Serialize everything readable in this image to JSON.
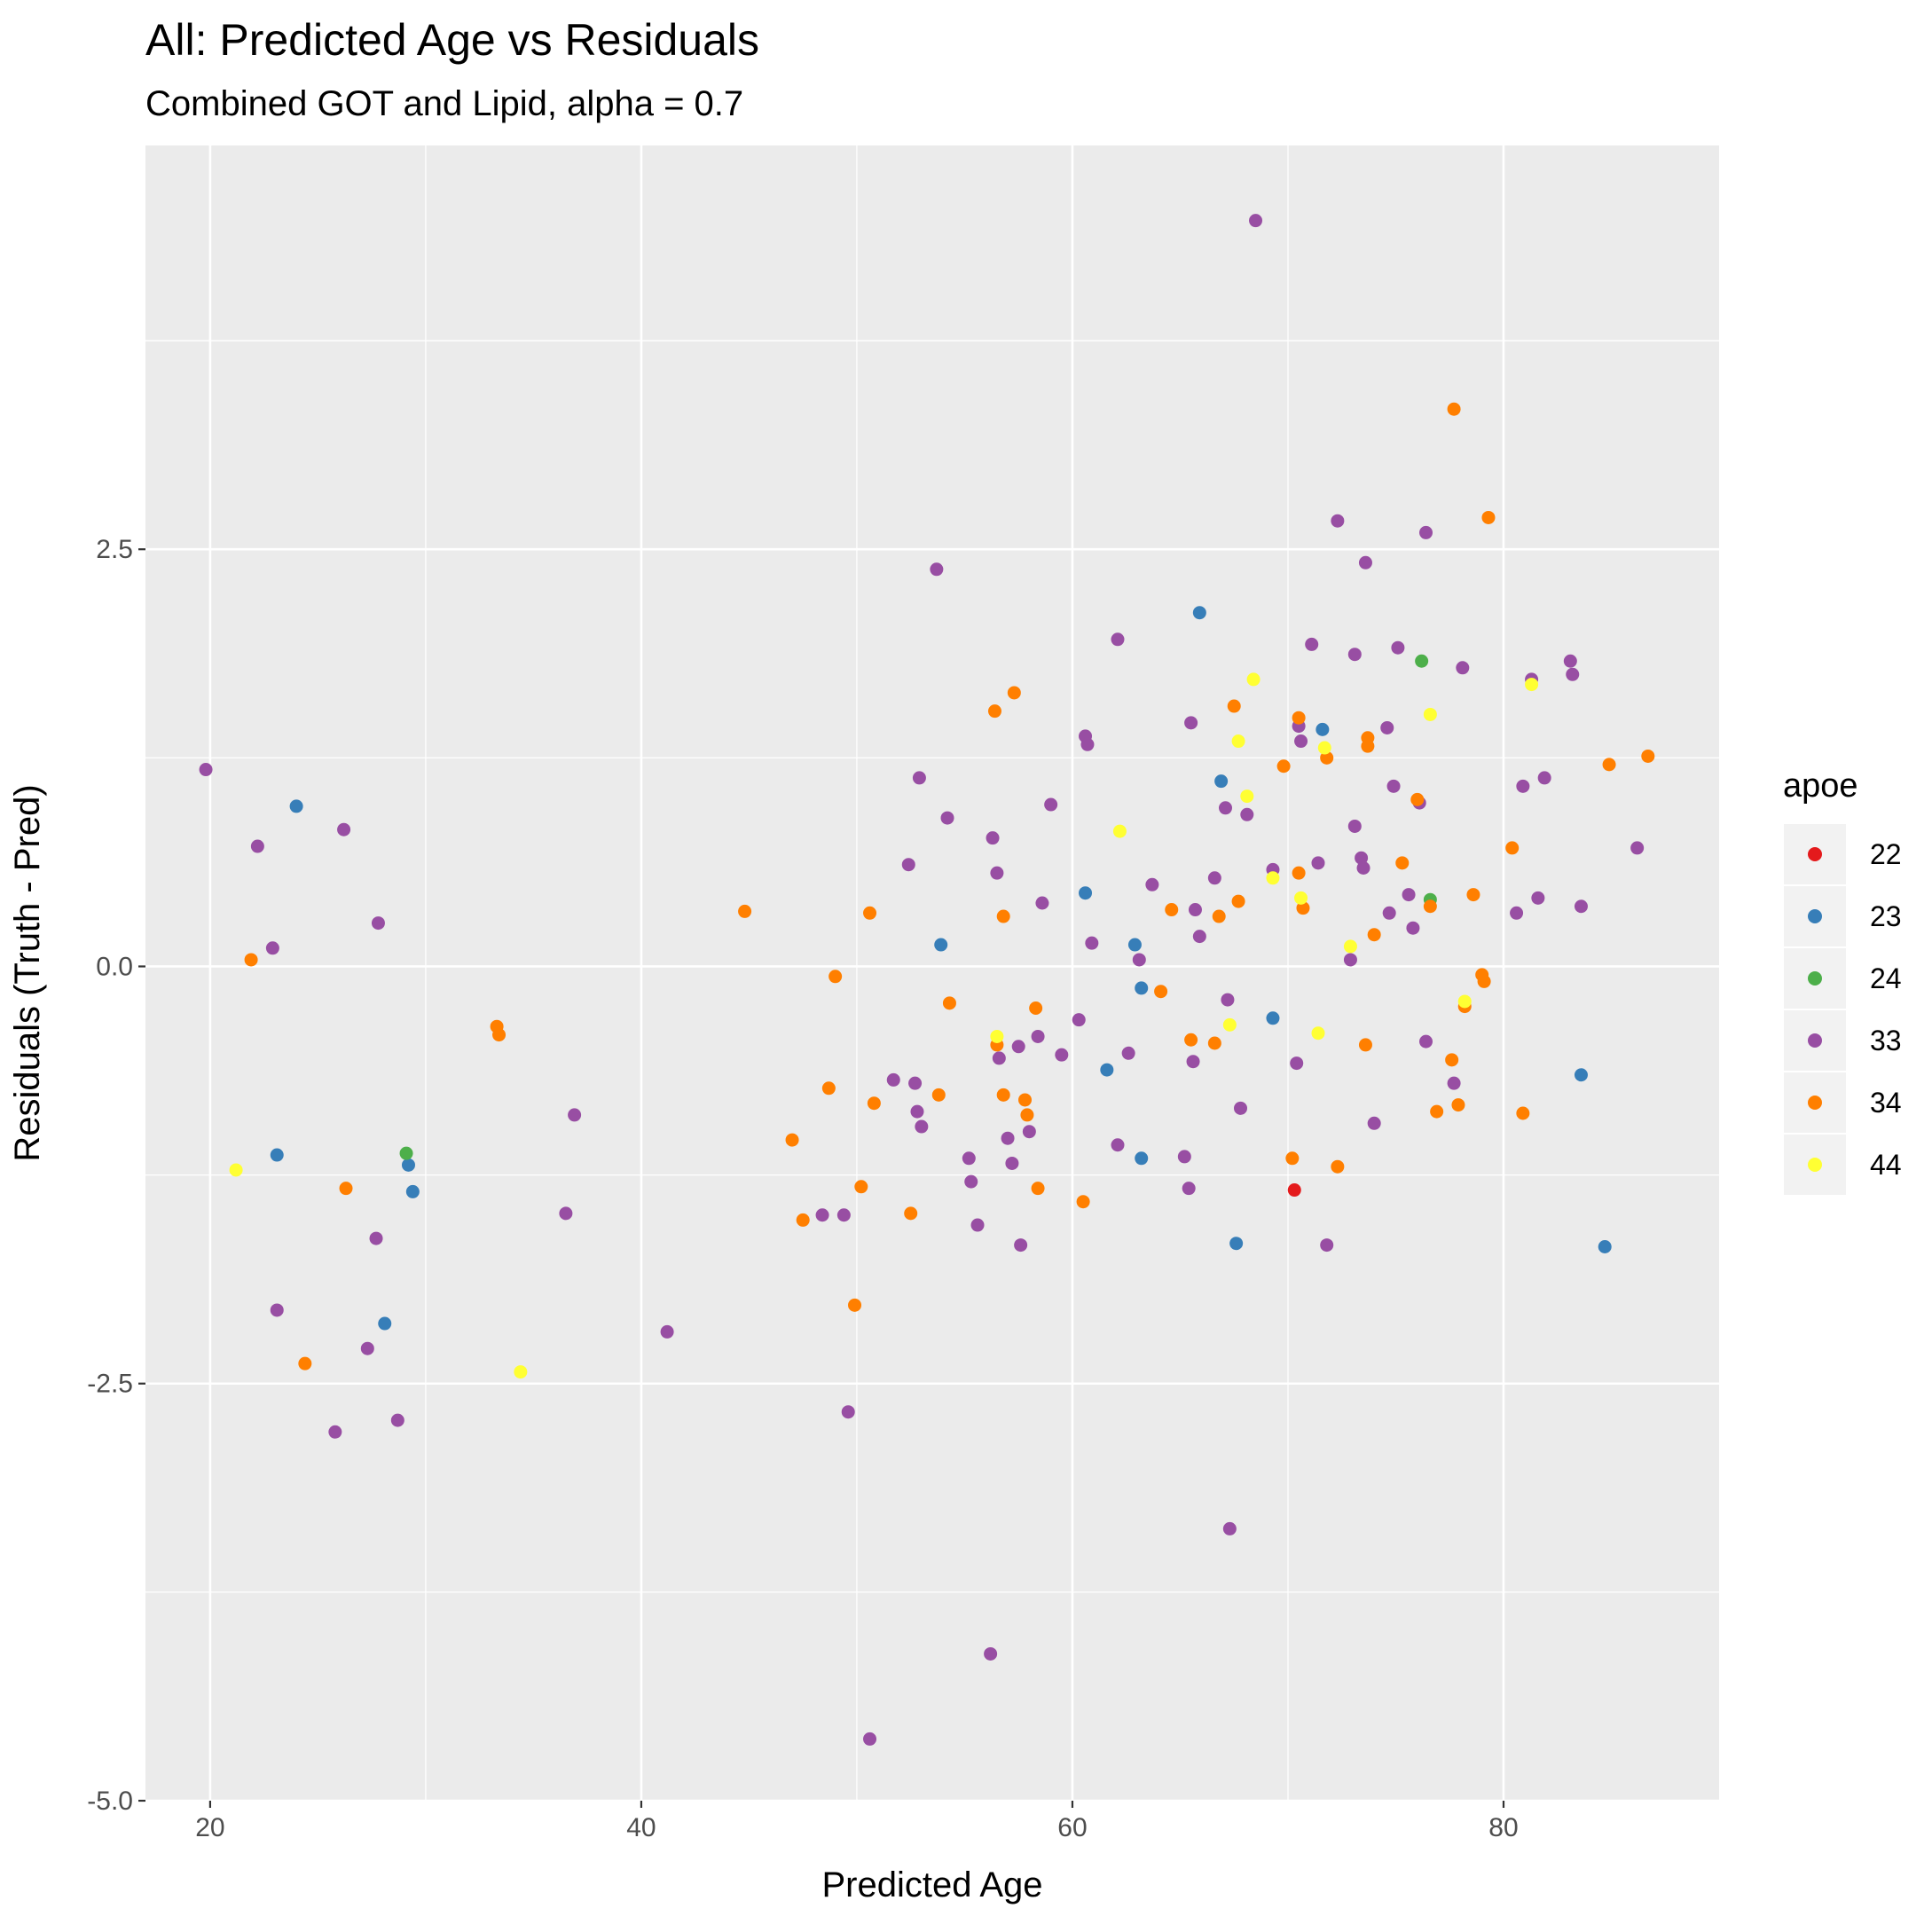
{
  "chart_data": {
    "type": "scatter",
    "title": "All: Predicted Age vs Residuals",
    "subtitle": "Combined GOT and Lipid, alpha = 0.7",
    "xlabel": "Predicted Age",
    "ylabel": "Residuals (Truth - Pred)",
    "xlim": [
      17,
      90
    ],
    "ylim": [
      -5.0,
      4.92
    ],
    "x_ticks": [
      20,
      40,
      60,
      80
    ],
    "y_ticks": [
      -5.0,
      -2.5,
      0.0,
      2.5
    ],
    "y_tick_labels": [
      "-5.0",
      "-2.5",
      "0.0",
      "2.5"
    ],
    "grid": true,
    "legend": {
      "title": "apoe",
      "position": "right"
    },
    "series": [
      {
        "name": "22",
        "color": "#E41A1C",
        "points": [
          [
            70.3,
            -1.34
          ]
        ]
      },
      {
        "name": "23",
        "color": "#377EB8",
        "points": [
          [
            24.0,
            0.96
          ],
          [
            23.1,
            -1.13
          ],
          [
            28.1,
            -2.14
          ],
          [
            29.2,
            -1.19
          ],
          [
            29.4,
            -1.35
          ],
          [
            53.9,
            0.13
          ],
          [
            60.6,
            0.44
          ],
          [
            61.6,
            -0.62
          ],
          [
            62.9,
            0.13
          ],
          [
            63.2,
            -0.13
          ],
          [
            63.2,
            -1.15
          ],
          [
            65.9,
            2.12
          ],
          [
            66.9,
            1.11
          ],
          [
            67.6,
            -1.66
          ],
          [
            69.3,
            -0.31
          ],
          [
            71.6,
            1.42
          ],
          [
            83.6,
            -0.65
          ],
          [
            84.7,
            -1.68
          ]
        ]
      },
      {
        "name": "24",
        "color": "#4DAF4A",
        "points": [
          [
            29.1,
            -1.12
          ],
          [
            76.2,
            1.83
          ],
          [
            76.6,
            0.4
          ]
        ]
      },
      {
        "name": "33",
        "color": "#984EA3",
        "points": [
          [
            19.8,
            1.18
          ],
          [
            22.2,
            0.72
          ],
          [
            22.9,
            0.11
          ],
          [
            23.1,
            -2.06
          ],
          [
            25.8,
            -2.79
          ],
          [
            26.2,
            0.82
          ],
          [
            27.3,
            -2.29
          ],
          [
            27.7,
            -1.63
          ],
          [
            27.8,
            0.26
          ],
          [
            28.7,
            -2.72
          ],
          [
            36.5,
            -1.48
          ],
          [
            36.9,
            -0.89
          ],
          [
            41.2,
            -2.19
          ],
          [
            48.4,
            -1.49
          ],
          [
            49.4,
            -1.49
          ],
          [
            49.6,
            -2.67
          ],
          [
            50.6,
            -4.63
          ],
          [
            51.7,
            -0.68
          ],
          [
            52.4,
            0.61
          ],
          [
            52.7,
            -0.7
          ],
          [
            52.8,
            -0.87
          ],
          [
            52.9,
            1.13
          ],
          [
            53.0,
            -0.96
          ],
          [
            53.7,
            2.38
          ],
          [
            54.2,
            0.89
          ],
          [
            55.2,
            -1.15
          ],
          [
            55.3,
            -1.29
          ],
          [
            55.6,
            -1.55
          ],
          [
            56.2,
            -4.12
          ],
          [
            56.3,
            0.77
          ],
          [
            56.5,
            0.56
          ],
          [
            56.6,
            -0.55
          ],
          [
            57.0,
            -1.03
          ],
          [
            57.2,
            -1.18
          ],
          [
            57.5,
            -0.48
          ],
          [
            57.6,
            -1.67
          ],
          [
            58.0,
            -0.99
          ],
          [
            58.4,
            -0.42
          ],
          [
            58.6,
            0.38
          ],
          [
            59.0,
            0.97
          ],
          [
            59.5,
            -0.53
          ],
          [
            60.3,
            -0.32
          ],
          [
            60.6,
            1.38
          ],
          [
            60.7,
            1.33
          ],
          [
            60.9,
            0.14
          ],
          [
            62.1,
            1.96
          ],
          [
            62.1,
            -1.07
          ],
          [
            62.6,
            -0.52
          ],
          [
            63.1,
            0.04
          ],
          [
            63.7,
            0.49
          ],
          [
            65.2,
            -1.14
          ],
          [
            65.4,
            -1.33
          ],
          [
            65.5,
            1.46
          ],
          [
            65.6,
            -0.57
          ],
          [
            65.7,
            0.34
          ],
          [
            65.9,
            0.18
          ],
          [
            66.6,
            0.53
          ],
          [
            67.1,
            0.95
          ],
          [
            67.2,
            -0.2
          ],
          [
            67.3,
            -3.37
          ],
          [
            67.8,
            -0.85
          ],
          [
            68.1,
            0.91
          ],
          [
            68.5,
            4.47
          ],
          [
            69.3,
            0.58
          ],
          [
            70.4,
            -0.58
          ],
          [
            70.5,
            1.44
          ],
          [
            70.6,
            1.35
          ],
          [
            71.1,
            1.93
          ],
          [
            71.4,
            0.62
          ],
          [
            71.8,
            -1.67
          ],
          [
            72.3,
            2.67
          ],
          [
            72.9,
            0.04
          ],
          [
            73.1,
            0.84
          ],
          [
            73.1,
            1.87
          ],
          [
            73.4,
            0.65
          ],
          [
            73.5,
            0.59
          ],
          [
            73.6,
            2.42
          ],
          [
            74.0,
            -0.94
          ],
          [
            74.6,
            1.43
          ],
          [
            74.7,
            0.32
          ],
          [
            74.9,
            1.08
          ],
          [
            75.1,
            1.91
          ],
          [
            75.6,
            0.43
          ],
          [
            75.8,
            0.23
          ],
          [
            76.1,
            0.98
          ],
          [
            76.4,
            2.6
          ],
          [
            76.4,
            -0.45
          ],
          [
            77.7,
            -0.7
          ],
          [
            78.1,
            1.79
          ],
          [
            80.6,
            0.32
          ],
          [
            80.9,
            1.08
          ],
          [
            81.3,
            1.72
          ],
          [
            81.6,
            0.41
          ],
          [
            81.9,
            1.13
          ],
          [
            83.1,
            1.83
          ],
          [
            83.2,
            1.75
          ],
          [
            83.6,
            0.36
          ],
          [
            86.2,
            0.71
          ]
        ]
      },
      {
        "name": "34",
        "color": "#FF7F00",
        "points": [
          [
            21.9,
            0.04
          ],
          [
            24.4,
            -2.38
          ],
          [
            26.3,
            -1.33
          ],
          [
            33.3,
            -0.36
          ],
          [
            33.4,
            -0.41
          ],
          [
            44.8,
            0.33
          ],
          [
            47.0,
            -1.04
          ],
          [
            47.5,
            -1.52
          ],
          [
            48.7,
            -0.73
          ],
          [
            49.0,
            -0.06
          ],
          [
            50.2,
            -1.32
          ],
          [
            50.6,
            0.32
          ],
          [
            50.8,
            -0.82
          ],
          [
            49.9,
            -2.03
          ],
          [
            52.5,
            -1.48
          ],
          [
            53.8,
            -0.77
          ],
          [
            54.3,
            -0.22
          ],
          [
            56.4,
            1.53
          ],
          [
            56.5,
            -0.47
          ],
          [
            56.8,
            0.3
          ],
          [
            56.8,
            -0.77
          ],
          [
            57.3,
            1.64
          ],
          [
            57.8,
            -0.8
          ],
          [
            57.9,
            -0.89
          ],
          [
            58.3,
            -0.25
          ],
          [
            58.4,
            -1.33
          ],
          [
            60.5,
            -1.41
          ],
          [
            64.1,
            -0.15
          ],
          [
            64.6,
            0.34
          ],
          [
            65.5,
            -0.44
          ],
          [
            66.6,
            -0.46
          ],
          [
            66.8,
            0.3
          ],
          [
            67.5,
            1.56
          ],
          [
            67.7,
            0.39
          ],
          [
            69.8,
            1.2
          ],
          [
            70.2,
            -1.15
          ],
          [
            70.5,
            0.56
          ],
          [
            70.5,
            1.49
          ],
          [
            70.7,
            0.35
          ],
          [
            71.8,
            1.25
          ],
          [
            72.3,
            -1.2
          ],
          [
            73.6,
            -0.47
          ],
          [
            73.7,
            1.37
          ],
          [
            73.7,
            1.32
          ],
          [
            74.0,
            0.19
          ],
          [
            75.3,
            0.62
          ],
          [
            76.0,
            1.0
          ],
          [
            76.6,
            0.36
          ],
          [
            76.9,
            -0.87
          ],
          [
            77.6,
            -0.56
          ],
          [
            77.7,
            3.34
          ],
          [
            77.9,
            -0.83
          ],
          [
            78.2,
            -0.24
          ],
          [
            78.6,
            0.43
          ],
          [
            79.0,
            -0.05
          ],
          [
            79.1,
            -0.09
          ],
          [
            79.3,
            2.69
          ],
          [
            80.4,
            0.71
          ],
          [
            80.9,
            -0.88
          ],
          [
            84.9,
            1.21
          ],
          [
            86.7,
            1.26
          ]
        ]
      },
      {
        "name": "44",
        "color": "#FFFF33",
        "points": [
          [
            21.2,
            -1.22
          ],
          [
            34.4,
            -2.43
          ],
          [
            56.5,
            -0.42
          ],
          [
            62.2,
            0.81
          ],
          [
            67.3,
            -0.35
          ],
          [
            67.7,
            1.35
          ],
          [
            68.1,
            1.02
          ],
          [
            68.4,
            1.72
          ],
          [
            69.3,
            0.53
          ],
          [
            70.6,
            0.41
          ],
          [
            71.4,
            -0.4
          ],
          [
            71.7,
            1.31
          ],
          [
            72.9,
            0.12
          ],
          [
            76.6,
            1.51
          ],
          [
            78.2,
            -0.21
          ],
          [
            81.3,
            1.69
          ]
        ]
      }
    ]
  }
}
